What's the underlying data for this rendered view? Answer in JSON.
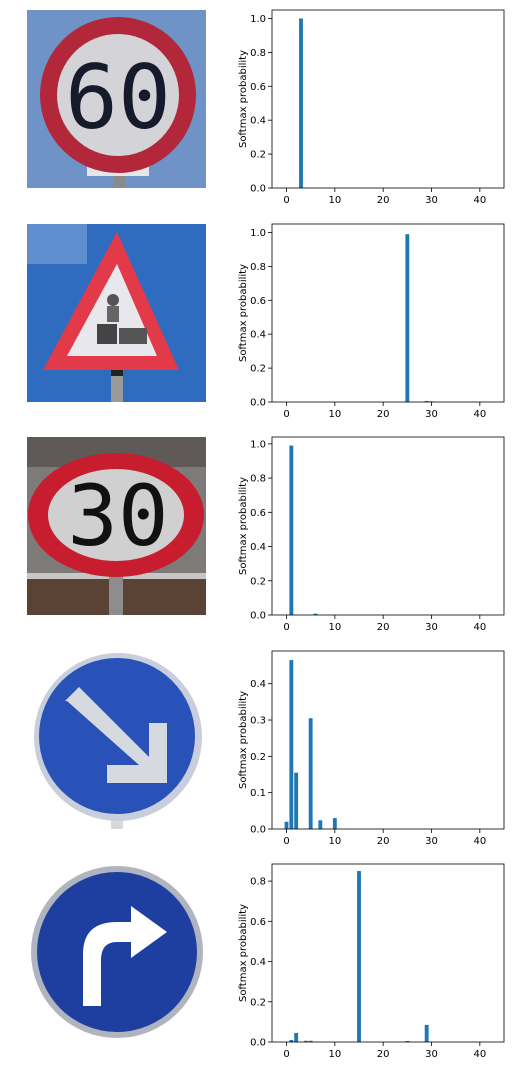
{
  "signs": [
    {
      "kind": "speed-limit",
      "label": "60"
    },
    {
      "kind": "roadwork-warning",
      "label": ""
    },
    {
      "kind": "speed-limit",
      "label": "30"
    },
    {
      "kind": "keep-right",
      "label": ""
    },
    {
      "kind": "turn-right-ahead",
      "label": ""
    }
  ],
  "chart_data": [
    {
      "type": "bar",
      "ylabel": "Softmax probability",
      "xlim": [
        -3,
        45
      ],
      "ylim": [
        0,
        1.05
      ],
      "xticks": [
        0,
        10,
        20,
        30,
        40
      ],
      "yticks": [
        0.0,
        0.2,
        0.4,
        0.6,
        0.8,
        1.0
      ],
      "ytick_labels": [
        "0.0",
        "0.2",
        "0.4",
        "0.6",
        "0.8",
        "1.0"
      ],
      "bars": [
        {
          "x": 3,
          "y": 1.0
        }
      ]
    },
    {
      "type": "bar",
      "ylabel": "Softmax probability",
      "xlim": [
        -3,
        45
      ],
      "ylim": [
        0,
        1.05
      ],
      "xticks": [
        0,
        10,
        20,
        30,
        40
      ],
      "yticks": [
        0.0,
        0.2,
        0.4,
        0.6,
        0.8,
        1.0
      ],
      "ytick_labels": [
        "0.0",
        "0.2",
        "0.4",
        "0.6",
        "0.8",
        "1.0"
      ],
      "bars": [
        {
          "x": 25,
          "y": 0.99
        },
        {
          "x": 29,
          "y": 0.006
        },
        {
          "x": 30,
          "y": 0.004
        }
      ]
    },
    {
      "type": "bar",
      "ylabel": "Softmax probability",
      "xlim": [
        -3,
        45
      ],
      "ylim": [
        0,
        1.04
      ],
      "xticks": [
        0,
        10,
        20,
        30,
        40
      ],
      "yticks": [
        0.0,
        0.2,
        0.4,
        0.6,
        0.8,
        1.0
      ],
      "ytick_labels": [
        "0.0",
        "0.2",
        "0.4",
        "0.6",
        "0.8",
        "1.0"
      ],
      "bars": [
        {
          "x": 1,
          "y": 0.99
        },
        {
          "x": 6,
          "y": 0.008
        }
      ]
    },
    {
      "type": "bar",
      "ylabel": "Softmax probability",
      "xlim": [
        -3,
        45
      ],
      "ylim": [
        0,
        0.49
      ],
      "xticks": [
        0,
        10,
        20,
        30,
        40
      ],
      "yticks": [
        0.0,
        0.1,
        0.2,
        0.3,
        0.4
      ],
      "ytick_labels": [
        "0.0",
        "0.1",
        "0.2",
        "0.3",
        "0.4"
      ],
      "bars": [
        {
          "x": 0,
          "y": 0.02
        },
        {
          "x": 1,
          "y": 0.465
        },
        {
          "x": 2,
          "y": 0.155
        },
        {
          "x": 5,
          "y": 0.305
        },
        {
          "x": 7,
          "y": 0.024
        },
        {
          "x": 10,
          "y": 0.03
        }
      ]
    },
    {
      "type": "bar",
      "ylabel": "Softmax probability",
      "xlim": [
        -3,
        45
      ],
      "ylim": [
        0,
        0.885
      ],
      "xticks": [
        0,
        10,
        20,
        30,
        40
      ],
      "yticks": [
        0.0,
        0.2,
        0.4,
        0.6,
        0.8
      ],
      "ytick_labels": [
        "0.0",
        "0.2",
        "0.4",
        "0.6",
        "0.8"
      ],
      "bars": [
        {
          "x": 1,
          "y": 0.01
        },
        {
          "x": 2,
          "y": 0.045
        },
        {
          "x": 4,
          "y": 0.006
        },
        {
          "x": 5,
          "y": 0.006
        },
        {
          "x": 15,
          "y": 0.85
        },
        {
          "x": 25,
          "y": 0.005
        },
        {
          "x": 29,
          "y": 0.085
        }
      ]
    }
  ]
}
